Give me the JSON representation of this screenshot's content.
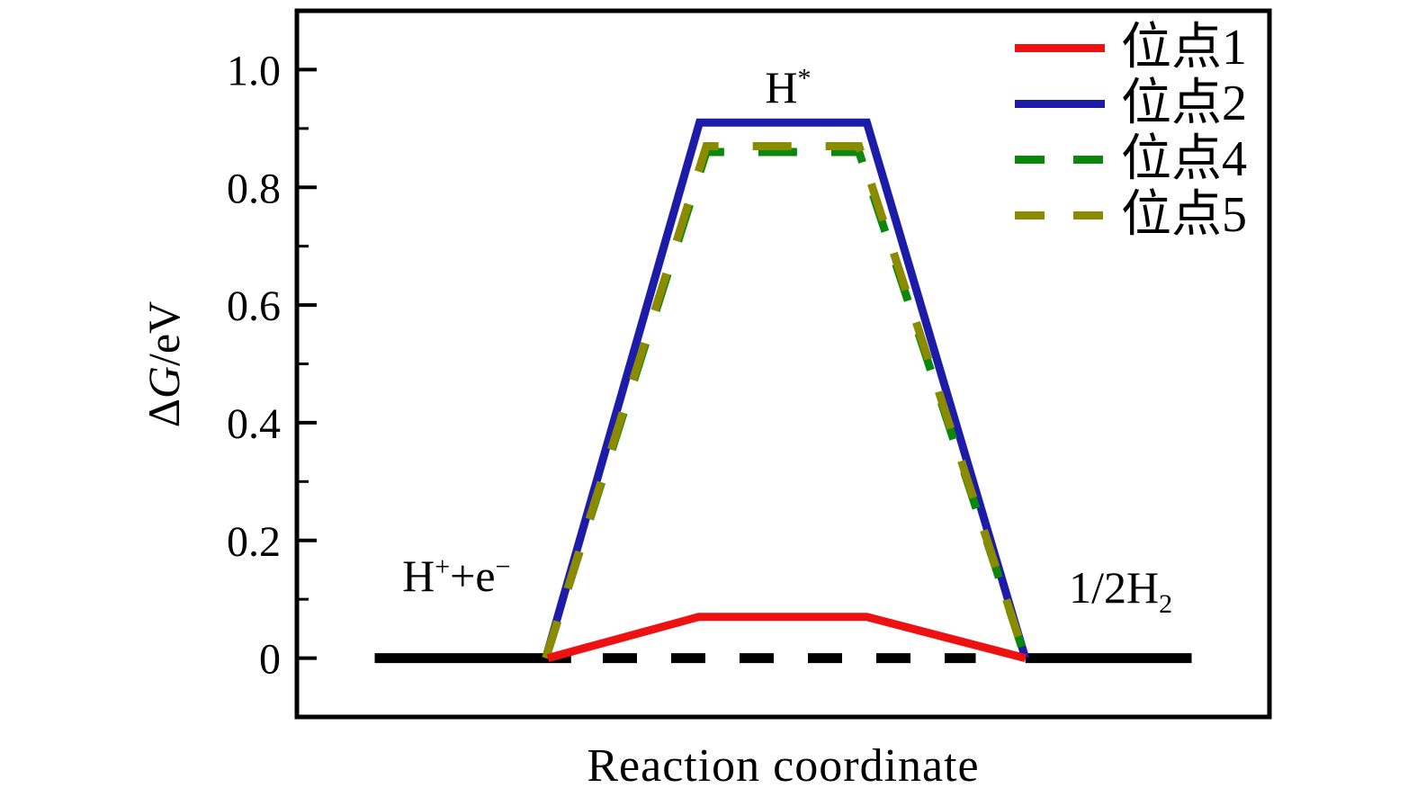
{
  "figure": {
    "background": "#ffffff",
    "frame_color": "#000000"
  },
  "chart_data": {
    "type": "line",
    "title": "",
    "xlabel": "Reaction coordinate",
    "ylabel": "ΔG/eV",
    "ylabel_parts": {
      "delta": "Δ",
      "symbol": "G",
      "unit": "/eV"
    },
    "xlim": [
      0,
      1
    ],
    "ylim": [
      -0.1,
      1.1
    ],
    "grid": false,
    "x_ticks": "none",
    "yticks": {
      "major": [
        {
          "value": 0,
          "label": "0"
        },
        {
          "value": 0.2,
          "label": "0.2"
        },
        {
          "value": 0.4,
          "label": "0.4"
        },
        {
          "value": 0.6,
          "label": "0.6"
        },
        {
          "value": 0.8,
          "label": "0.8"
        },
        {
          "value": 1.0,
          "label": "1.0"
        }
      ],
      "minor": [
        0.1,
        0.3,
        0.5,
        0.7,
        0.9
      ]
    },
    "series": [
      {
        "name": "initial-state-level",
        "color": "#000000",
        "style": "solid",
        "width": 11,
        "points": [
          [
            0.08,
            0
          ],
          [
            0.282,
            0
          ]
        ],
        "legend": false
      },
      {
        "name": "zero-reference-dashed",
        "color": "#000000",
        "style": "dashed",
        "dash": [
          38,
          38
        ],
        "width": 11,
        "points": [
          [
            0.3145,
            0
          ],
          [
            0.698,
            0
          ]
        ],
        "legend": false
      },
      {
        "name": "final-state-level",
        "color": "#000000",
        "style": "solid",
        "width": 11,
        "points": [
          [
            0.749,
            0
          ],
          [
            0.92,
            0
          ]
        ],
        "legend": false
      },
      {
        "name": "site-2",
        "label": "位点2",
        "delta_g_ev": 0.91,
        "color": "#1c1ca8",
        "style": "solid",
        "width": 9,
        "points": [
          [
            0.256,
            0
          ],
          [
            0.414,
            0.91
          ],
          [
            0.586,
            0.91
          ],
          [
            0.749,
            0
          ]
        ],
        "legend": true
      },
      {
        "name": "site-4",
        "label": "位点4",
        "delta_g_ev": 0.86,
        "color": "#0b880b",
        "style": "dashed",
        "dash": [
          43,
          38
        ],
        "width": 9,
        "points": [
          [
            0.256,
            0
          ],
          [
            0.421,
            0.86
          ],
          [
            0.578,
            0.86
          ],
          [
            0.749,
            0
          ]
        ],
        "legend": true
      },
      {
        "name": "site-5",
        "label": "位点5",
        "delta_g_ev": 0.87,
        "color": "#8b8b00",
        "style": "dashed",
        "dash": [
          43,
          38
        ],
        "width": 9,
        "points": [
          [
            0.256,
            0
          ],
          [
            0.421,
            0.87
          ],
          [
            0.578,
            0.87
          ],
          [
            0.749,
            0
          ]
        ],
        "legend": true
      },
      {
        "name": "site-1",
        "label": "位点1",
        "delta_g_ev": 0.07,
        "color": "#ee1111",
        "style": "solid",
        "width": 9,
        "points": [
          [
            0.258,
            0
          ],
          [
            0.413,
            0.07
          ],
          [
            0.586,
            0.07
          ],
          [
            0.749,
            0
          ]
        ],
        "legend": true
      }
    ],
    "legend": {
      "position": "upper right",
      "entries": [
        {
          "label": "位点1",
          "color": "#ee1111",
          "style": "solid"
        },
        {
          "label": "位点2",
          "color": "#1c1ca8",
          "style": "solid"
        },
        {
          "label": "位点4",
          "color": "#0b880b",
          "style": "dashed"
        },
        {
          "label": "位点5",
          "color": "#8b8b00",
          "style": "dashed"
        }
      ]
    },
    "annotations": {
      "adsorbed": {
        "text": "H*",
        "x": 0.505,
        "y_ev": 0.97,
        "parts": {
          "base": "H",
          "sup": "*"
        }
      },
      "initial": {
        "text": "H⁺+e⁻",
        "x": 0.164,
        "y_ev": 0.14,
        "parts": {
          "base1": "H",
          "sup1": "+",
          "operator": "+",
          "base2": "e",
          "sup2": "−"
        }
      },
      "final": {
        "text": "1/2H₂",
        "x": 0.847,
        "y_ev": 0.12,
        "parts": {
          "base": "1/2H",
          "sub": "2"
        }
      }
    }
  }
}
